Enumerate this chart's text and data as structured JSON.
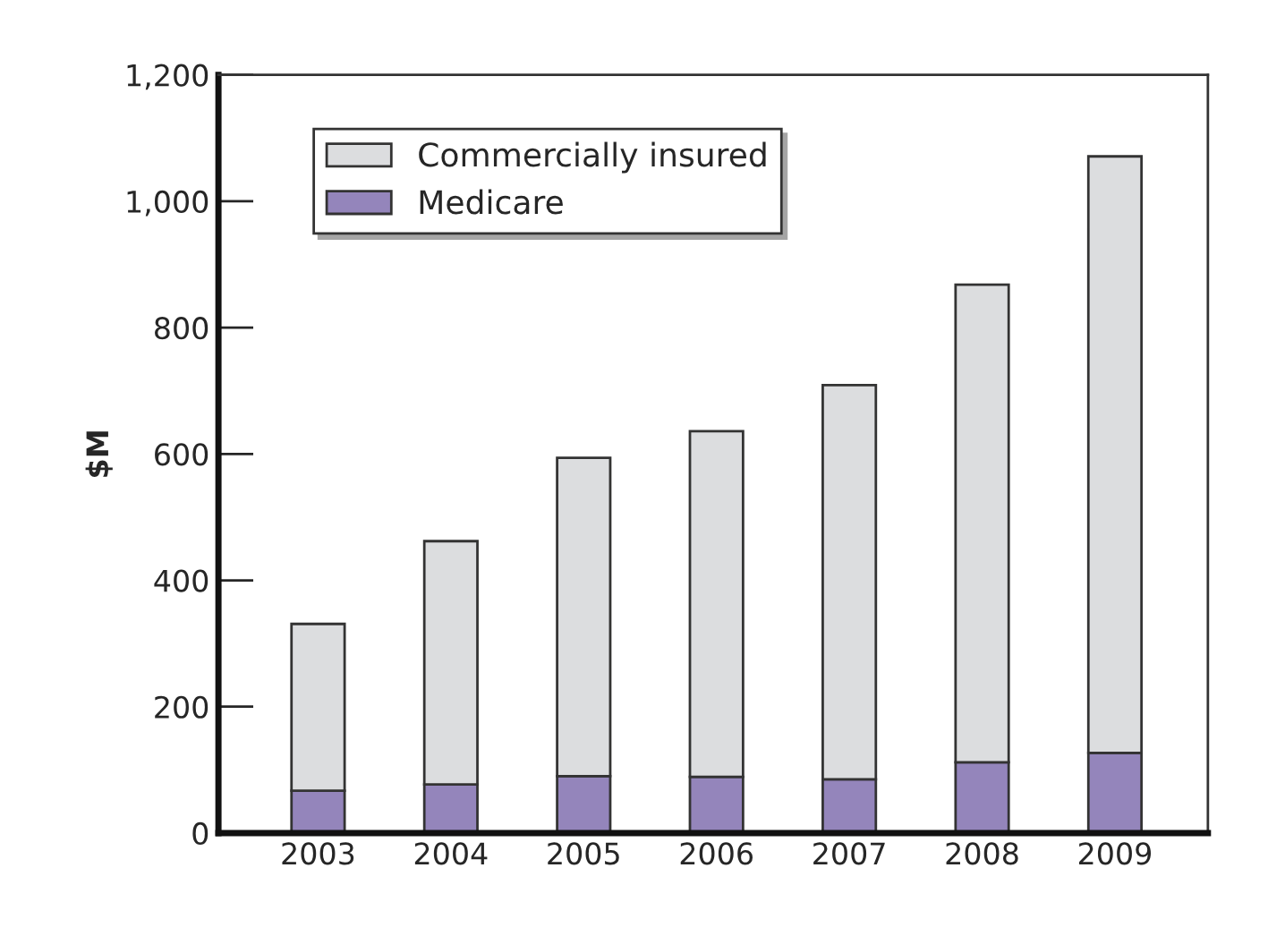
{
  "chart_data": {
    "type": "bar",
    "stacked": true,
    "ylabel": "$M",
    "categories": [
      "2003",
      "2004",
      "2005",
      "2006",
      "2007",
      "2008",
      "2009"
    ],
    "series": [
      {
        "name": "Medicare",
        "color": "#9485bb",
        "values": [
          67,
          77,
          90,
          89,
          85,
          112,
          127
        ]
      },
      {
        "name": "Commercially insured",
        "color": "#dcdddf",
        "values": [
          264,
          385,
          504,
          547,
          624,
          756,
          944
        ]
      }
    ],
    "ylim": [
      0,
      1200
    ],
    "yticks": [
      0,
      200,
      400,
      600,
      800,
      {
        "value": 1000,
        "label": "1,000"
      },
      {
        "value": 1200,
        "label": "1,200"
      }
    ],
    "grid": false,
    "legend": "top left"
  }
}
